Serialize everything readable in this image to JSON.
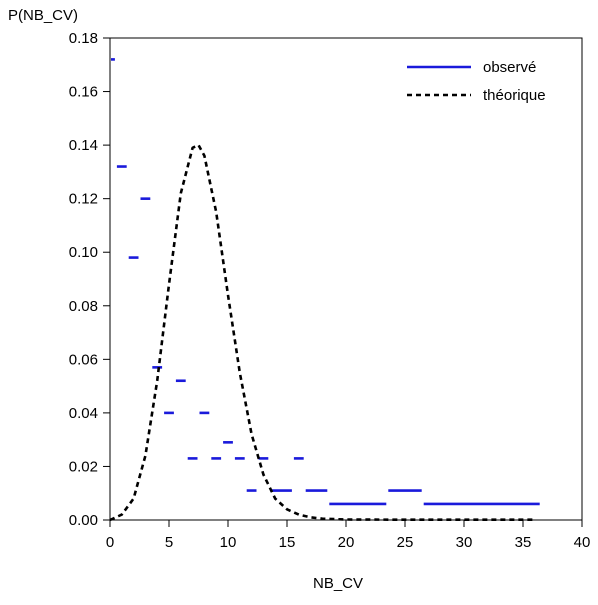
{
  "chart_data": {
    "type": "line",
    "title": "",
    "xlabel": "NB_CV",
    "ylabel": "P(NB_CV)",
    "xlim": [
      0,
      40
    ],
    "ylim": [
      0,
      0.18
    ],
    "x_ticks": [
      0,
      5,
      10,
      15,
      20,
      25,
      30,
      35,
      40
    ],
    "x_tick_labels": [
      "0",
      "5",
      "10",
      "15",
      "20",
      "25",
      "30",
      "35",
      "40"
    ],
    "y_ticks": [
      0,
      0.02,
      0.04,
      0.06,
      0.08,
      0.1,
      0.12,
      0.14,
      0.16,
      0.18
    ],
    "y_tick_labels": [
      "0.00",
      "0.02",
      "0.04",
      "0.06",
      "0.08",
      "0.10",
      "0.12",
      "0.14",
      "0.16",
      "0.18"
    ],
    "grid": false,
    "legend_position": "top-right",
    "series": [
      {
        "name": "observé",
        "style": "solid",
        "color": "#1a1adb",
        "segments": [
          {
            "x0": 0,
            "x1": 0.5,
            "y": 0.172
          },
          {
            "x0": 0.5,
            "x1": 1.5,
            "y": 0.132
          },
          {
            "x0": 1.5,
            "x1": 2.5,
            "y": 0.098
          },
          {
            "x0": 2.5,
            "x1": 3.5,
            "y": 0.12
          },
          {
            "x0": 3.5,
            "x1": 4.5,
            "y": 0.057
          },
          {
            "x0": 4.5,
            "x1": 5.5,
            "y": 0.04
          },
          {
            "x0": 5.5,
            "x1": 6.5,
            "y": 0.052
          },
          {
            "x0": 6.5,
            "x1": 7.5,
            "y": 0.023
          },
          {
            "x0": 7.5,
            "x1": 8.5,
            "y": 0.04
          },
          {
            "x0": 8.5,
            "x1": 9.5,
            "y": 0.023
          },
          {
            "x0": 9.5,
            "x1": 10.5,
            "y": 0.029
          },
          {
            "x0": 10.5,
            "x1": 11.5,
            "y": 0.023
          },
          {
            "x0": 11.5,
            "x1": 12.5,
            "y": 0.011
          },
          {
            "x0": 12.5,
            "x1": 13.5,
            "y": 0.023
          },
          {
            "x0": 13.5,
            "x1": 15.5,
            "y": 0.011
          },
          {
            "x0": 15.5,
            "x1": 16.5,
            "y": 0.023
          },
          {
            "x0": 16.5,
            "x1": 18.5,
            "y": 0.011
          },
          {
            "x0": 18.5,
            "x1": 23.5,
            "y": 0.006
          },
          {
            "x0": 23.5,
            "x1": 26.5,
            "y": 0.011
          },
          {
            "x0": 26.5,
            "x1": 36.5,
            "y": 0.006
          }
        ]
      },
      {
        "name": "théorique",
        "style": "dashed",
        "color": "#000000",
        "x": [
          0,
          1,
          2,
          3,
          4,
          5,
          6,
          7,
          7.5,
          8,
          9,
          10,
          11,
          12,
          13,
          14,
          15,
          16,
          17,
          18,
          20,
          25,
          30,
          36
        ],
        "y": [
          0.0,
          0.002,
          0.008,
          0.024,
          0.052,
          0.088,
          0.122,
          0.139,
          0.14,
          0.136,
          0.115,
          0.084,
          0.055,
          0.032,
          0.017,
          0.008,
          0.004,
          0.002,
          0.001,
          0.0005,
          0.0002,
          0.0001,
          0.0001,
          0.0001
        ]
      }
    ]
  }
}
